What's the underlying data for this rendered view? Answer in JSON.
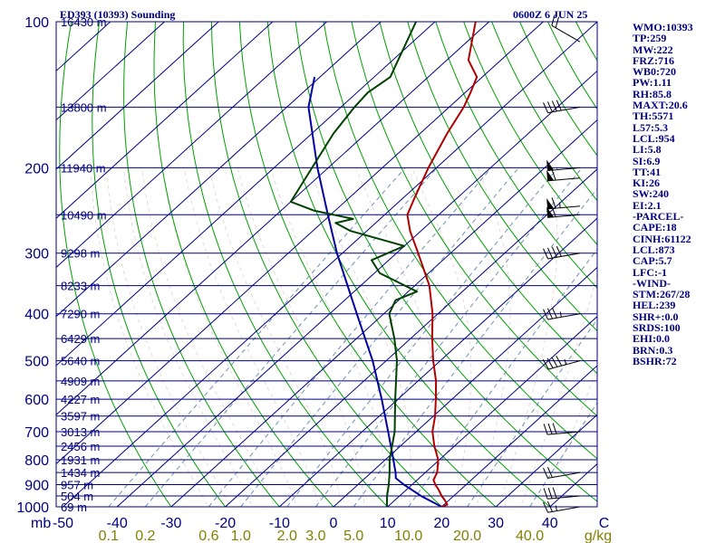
{
  "header": {
    "station": "ED393 (10393) Sounding",
    "time": "0600Z  6 JUN 25"
  },
  "side_panel": [
    "WMO:10393",
    "TP:259",
    "MW:222",
    "FRZ:716",
    "WB0:720",
    "PW:1.11",
    "RH:85.8",
    "MAXT:20.6",
    "TH:5571",
    "L57:5.3",
    "LCL:954",
    "LI:5.8",
    "SI:6.9",
    "TT:41",
    "KI:26",
    "SW:240",
    "EI:2.1",
    "-PARCEL-",
    "CAPE:18",
    "CINH:61122",
    "LCL:873",
    "CAP:5.7",
    "LFC:-1",
    "-WIND-",
    "STM:267/28",
    "HEL:239",
    "SHR+:0.0",
    "SRDS:100",
    "EHI:0.0",
    "BRN:0.3",
    "BSHR:72"
  ],
  "colors": {
    "isobar": "#000080",
    "isotherm": "#000080",
    "dry_adiabat": "#00a000",
    "moist_adiabat": "#e8d8d8",
    "mixing_ratio": "#7090b0",
    "temperature": "#b00000",
    "dewpoint": "#004000",
    "parcel": "#0000a0",
    "label": "#000080",
    "g_kg_label": "#808000",
    "wind_barb": "#000000"
  },
  "chart_data": {
    "type": "skew-t log-p sounding",
    "x_unit": "°C",
    "y_unit": "mb",
    "xlim": [
      -50,
      50
    ],
    "ylim": [
      1000,
      100
    ],
    "y_scale": "log",
    "pressure_ticks": [
      100,
      200,
      300,
      400,
      500,
      600,
      700,
      800,
      900,
      1000
    ],
    "pressure_unit_label": "mb",
    "temperature_ticks": [
      -50,
      -40,
      -30,
      -20,
      -10,
      0,
      10,
      20,
      30,
      40,
      50
    ],
    "temperature_tick_labels": [
      "-50",
      "-40",
      "-30",
      "-20",
      "-10",
      "0",
      "10",
      "20",
      "30",
      "40",
      "C"
    ],
    "height_labels": [
      {
        "p": 100,
        "label": "16430 m"
      },
      {
        "p": 150,
        "label": "13800 m"
      },
      {
        "p": 200,
        "label": "11940 m"
      },
      {
        "p": 250,
        "label": "10490 m"
      },
      {
        "p": 300,
        "label": "9298 m"
      },
      {
        "p": 350,
        "label": "8233 m"
      },
      {
        "p": 400,
        "label": "7290 m"
      },
      {
        "p": 450,
        "label": "6429 m"
      },
      {
        "p": 500,
        "label": "5640 m"
      },
      {
        "p": 550,
        "label": "4909 m"
      },
      {
        "p": 600,
        "label": "4227 m"
      },
      {
        "p": 650,
        "label": "3597 m"
      },
      {
        "p": 700,
        "label": "3013 m"
      },
      {
        "p": 750,
        "label": "2456 m"
      },
      {
        "p": 800,
        "label": "1931 m"
      },
      {
        "p": 850,
        "label": "1434 m"
      },
      {
        "p": 900,
        "label": "957 m"
      },
      {
        "p": 950,
        "label": "504 m"
      },
      {
        "p": 1000,
        "label": "69 m"
      }
    ],
    "mixing_ratio_labels": [
      "0.1",
      "0.2",
      "0.6",
      "1.0",
      "2.0",
      "3.0",
      "5.0",
      "10.0",
      "20.0",
      "40.0"
    ],
    "mixing_ratio_values": [
      0.1,
      0.2,
      0.6,
      1.0,
      2.0,
      3.0,
      5.0,
      10.0,
      20.0,
      40.0
    ],
    "mixing_ratio_unit": "g/kg",
    "temperature_profile": [
      {
        "p": 1010,
        "t": 19.0
      },
      {
        "p": 990,
        "t": 20.6
      },
      {
        "p": 970,
        "t": 19.3
      },
      {
        "p": 950,
        "t": 17.8
      },
      {
        "p": 920,
        "t": 15.8
      },
      {
        "p": 900,
        "t": 14.3
      },
      {
        "p": 880,
        "t": 13.0
      },
      {
        "p": 850,
        "t": 12.2
      },
      {
        "p": 800,
        "t": 9.8
      },
      {
        "p": 750,
        "t": 6.3
      },
      {
        "p": 700,
        "t": 3.0
      },
      {
        "p": 650,
        "t": 0.3
      },
      {
        "p": 600,
        "t": -3.0
      },
      {
        "p": 550,
        "t": -6.7
      },
      {
        "p": 500,
        "t": -11.3
      },
      {
        "p": 450,
        "t": -16.0
      },
      {
        "p": 400,
        "t": -21.0
      },
      {
        "p": 350,
        "t": -27.3
      },
      {
        "p": 300,
        "t": -36.0
      },
      {
        "p": 270,
        "t": -42.0
      },
      {
        "p": 250,
        "t": -45.8
      },
      {
        "p": 230,
        "t": -48.0
      },
      {
        "p": 200,
        "t": -51.5
      },
      {
        "p": 170,
        "t": -55.0
      },
      {
        "p": 150,
        "t": -57.3
      },
      {
        "p": 140,
        "t": -59.0
      },
      {
        "p": 130,
        "t": -61.0
      },
      {
        "p": 120,
        "t": -66.0
      },
      {
        "p": 100,
        "t": -72.5
      }
    ],
    "dewpoint_profile": [
      {
        "p": 1010,
        "t": 10.3
      },
      {
        "p": 950,
        "t": 7.7
      },
      {
        "p": 900,
        "t": 5.7
      },
      {
        "p": 850,
        "t": 3.4
      },
      {
        "p": 800,
        "t": 0.8
      },
      {
        "p": 700,
        "t": -4.0
      },
      {
        "p": 600,
        "t": -10.5
      },
      {
        "p": 500,
        "t": -18.0
      },
      {
        "p": 450,
        "t": -23.0
      },
      {
        "p": 400,
        "t": -29.0
      },
      {
        "p": 375,
        "t": -30.6
      },
      {
        "p": 360,
        "t": -28.4
      },
      {
        "p": 330,
        "t": -39.0
      },
      {
        "p": 310,
        "t": -43.2
      },
      {
        "p": 290,
        "t": -40.0
      },
      {
        "p": 270,
        "t": -53.0
      },
      {
        "p": 260,
        "t": -57.4
      },
      {
        "p": 255,
        "t": -55.0
      },
      {
        "p": 245,
        "t": -64.0
      },
      {
        "p": 235,
        "t": -70.0
      },
      {
        "p": 200,
        "t": -73.0
      },
      {
        "p": 170,
        "t": -76.0
      },
      {
        "p": 150,
        "t": -77.5
      },
      {
        "p": 140,
        "t": -78.0
      },
      {
        "p": 130,
        "t": -77.0
      },
      {
        "p": 120,
        "t": -79.0
      },
      {
        "p": 100,
        "t": -83.5
      }
    ],
    "parcel_profile": [
      {
        "p": 1000,
        "t": 20.0
      },
      {
        "p": 950,
        "t": 14.0
      },
      {
        "p": 900,
        "t": 8.5
      },
      {
        "p": 873,
        "t": 5.7
      },
      {
        "p": 850,
        "t": 4.5
      },
      {
        "p": 800,
        "t": 1.5
      },
      {
        "p": 700,
        "t": -5.2
      },
      {
        "p": 600,
        "t": -13.0
      },
      {
        "p": 500,
        "t": -22.5
      },
      {
        "p": 400,
        "t": -35.0
      },
      {
        "p": 300,
        "t": -51.0
      },
      {
        "p": 250,
        "t": -60.5
      },
      {
        "p": 200,
        "t": -72.0
      },
      {
        "p": 150,
        "t": -86.0
      },
      {
        "p": 130,
        "t": -91.0
      }
    ],
    "wind_barbs": [
      {
        "p": 1000,
        "dir": 260,
        "speed_kt": 25
      },
      {
        "p": 950,
        "dir": 265,
        "speed_kt": 30
      },
      {
        "p": 850,
        "dir": 260,
        "speed_kt": 20
      },
      {
        "p": 700,
        "dir": 265,
        "speed_kt": 30
      },
      {
        "p": 500,
        "dir": 255,
        "speed_kt": 45
      },
      {
        "p": 400,
        "dir": 260,
        "speed_kt": 35
      },
      {
        "p": 300,
        "dir": 260,
        "speed_kt": 40
      },
      {
        "p": 250,
        "dir": 265,
        "speed_kt": 60
      },
      {
        "p": 240,
        "dir": 265,
        "speed_kt": 65
      },
      {
        "p": 210,
        "dir": 265,
        "speed_kt": 60
      },
      {
        "p": 200,
        "dir": 265,
        "speed_kt": 50
      },
      {
        "p": 150,
        "dir": 260,
        "speed_kt": 40
      },
      {
        "p": 110,
        "dir": 300,
        "speed_kt": 20
      }
    ],
    "grid": true,
    "legend": "none"
  }
}
